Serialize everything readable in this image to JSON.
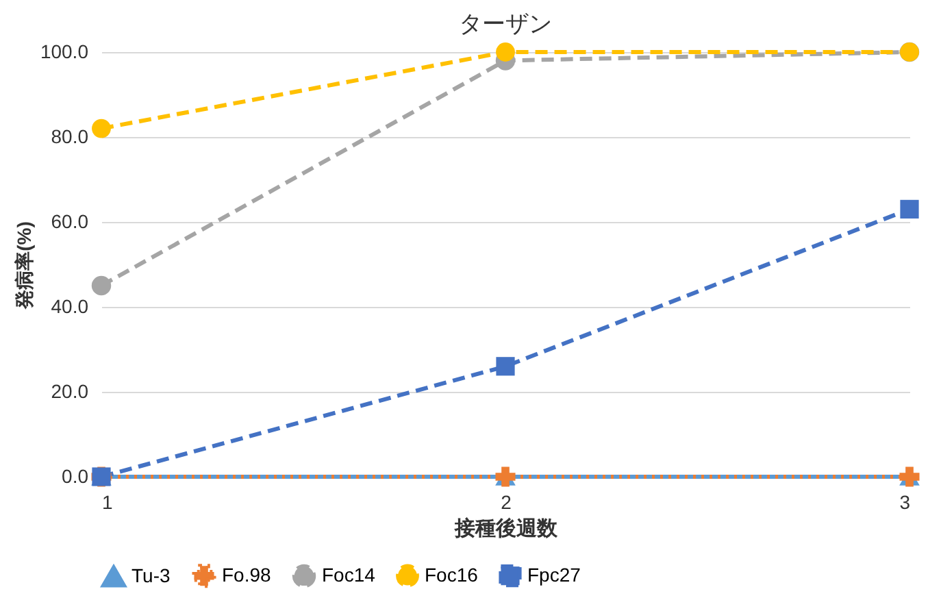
{
  "chart_data": {
    "type": "line",
    "title": "ターザン",
    "xlabel": "接種後週数",
    "ylabel": "発病率(%)",
    "x": [
      1,
      2,
      3
    ],
    "xlim": [
      1,
      3
    ],
    "xticks": [
      1,
      2,
      3
    ],
    "ylim": [
      0,
      100
    ],
    "yticks": [
      {
        "value": 0,
        "label": "0.0"
      },
      {
        "value": 20,
        "label": "20.0"
      },
      {
        "value": 40,
        "label": "40.0"
      },
      {
        "value": 60,
        "label": "60.0"
      },
      {
        "value": 80,
        "label": "80.0"
      },
      {
        "value": 100,
        "label": "100.0"
      }
    ],
    "grid": "y",
    "legend": "bottom",
    "series": [
      {
        "name": "Tu-3",
        "color": "#5b9bd5",
        "values": [
          0,
          0,
          0
        ],
        "marker": "triangle",
        "line_style": "solid"
      },
      {
        "name": "Fo.98",
        "color": "#ed7d31",
        "values": [
          0,
          0,
          0
        ],
        "marker": "cross",
        "line_style": "dotted"
      },
      {
        "name": "Foc14",
        "color": "#a5a5a5",
        "values": [
          45,
          98,
          100
        ],
        "marker": "circle",
        "line_style": "dashed"
      },
      {
        "name": "Foc16",
        "color": "#ffc000",
        "values": [
          82,
          100,
          100
        ],
        "marker": "circle",
        "line_style": "dashed"
      },
      {
        "name": "Fpc27",
        "color": "#4472c4",
        "values": [
          0,
          26,
          63
        ],
        "marker": "square",
        "line_style": "dashed"
      }
    ]
  }
}
